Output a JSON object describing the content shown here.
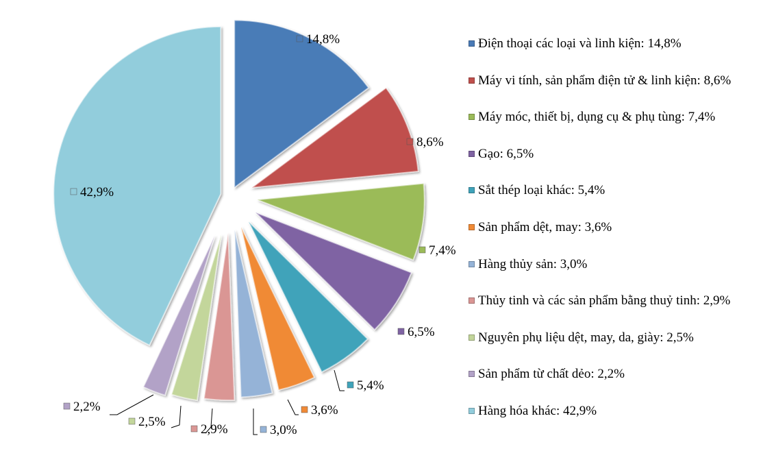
{
  "chart_data": {
    "type": "pie",
    "exploded": true,
    "legend_position": "right",
    "slices": [
      {
        "label": "Điện thoại các loại và linh kiện",
        "value": 14.8,
        "value_label": "14,8%",
        "legend": "Điện thoại các loại và linh kiện: 14,8%",
        "color": "#4a7bb7"
      },
      {
        "label": "Máy vi tính, sản phẩm điện tử & linh kiện",
        "value": 8.6,
        "value_label": "8,6%",
        "legend": "Máy vi tính, sản phẩm điện tử & linh kiện: 8,6%",
        "color": "#c0504d"
      },
      {
        "label": "Máy móc, thiết bị, dụng cụ & phụ tùng",
        "value": 7.4,
        "value_label": "7,4%",
        "legend": "Máy móc, thiết bị, dụng cụ & phụ tùng: 7,4%",
        "color": "#9bbb59"
      },
      {
        "label": "Gạo",
        "value": 6.5,
        "value_label": "6,5%",
        "legend": "Gạo: 6,5%",
        "color": "#7f63a3"
      },
      {
        "label": "Sắt thép loại khác",
        "value": 5.4,
        "value_label": "5,4%",
        "legend": "Sắt thép loại khác: 5,4%",
        "color": "#3fa3ba"
      },
      {
        "label": "Sản phẩm dệt, may",
        "value": 3.6,
        "value_label": "3,6%",
        "legend": "Sản phẩm dệt, may: 3,6%",
        "color": "#f08a36"
      },
      {
        "label": "Hàng thủy sản",
        "value": 3.0,
        "value_label": "3,0%",
        "legend": "Hàng thủy sản: 3,0%",
        "color": "#95b3d7"
      },
      {
        "label": "Thủy tinh và các sản phẩm bằng thuỷ tinh",
        "value": 2.9,
        "value_label": "2,9%",
        "legend": "Thủy tinh và các sản phẩm bằng thuỷ tinh: 2,9%",
        "color": "#da9694"
      },
      {
        "label": "Nguyên phụ liệu dệt, may, da, giày",
        "value": 2.5,
        "value_label": "2,5%",
        "legend": "Nguyên phụ liệu dệt, may, da, giày: 2,5%",
        "color": "#c3d69b"
      },
      {
        "label": "Sản phẩm từ chất dẻo",
        "value": 2.2,
        "value_label": "2,2%",
        "legend": "Sản phẩm từ chất dẻo: 2,2%",
        "color": "#b2a2c7"
      },
      {
        "label": "Hàng hóa khác",
        "value": 42.9,
        "value_label": "42,9%",
        "legend": "Hàng hóa khác: 42,9%",
        "color": "#92cddc"
      }
    ]
  }
}
